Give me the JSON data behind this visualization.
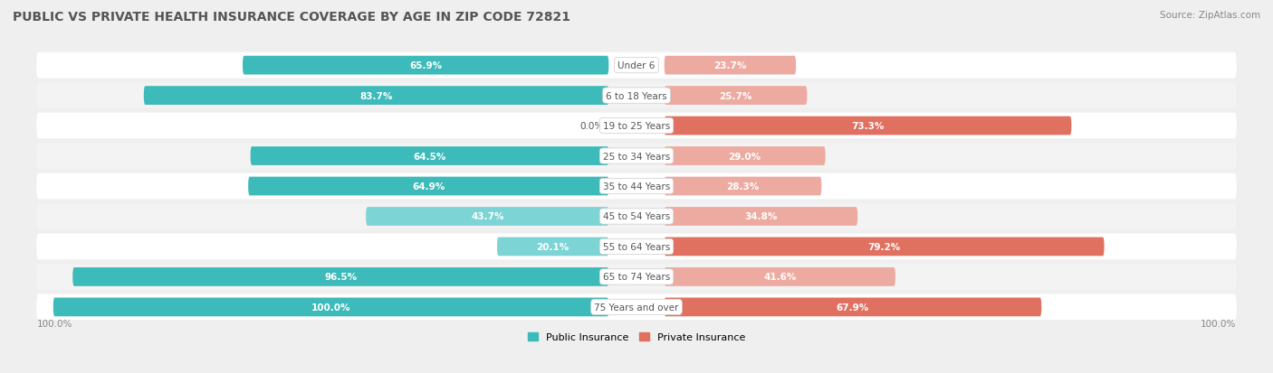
{
  "title": "PUBLIC VS PRIVATE HEALTH INSURANCE COVERAGE BY AGE IN ZIP CODE 72821",
  "source": "Source: ZipAtlas.com",
  "categories": [
    "Under 6",
    "6 to 18 Years",
    "19 to 25 Years",
    "25 to 34 Years",
    "35 to 44 Years",
    "45 to 54 Years",
    "55 to 64 Years",
    "65 to 74 Years",
    "75 Years and over"
  ],
  "public_values": [
    65.9,
    83.7,
    0.0,
    64.5,
    64.9,
    43.7,
    20.1,
    96.5,
    100.0
  ],
  "private_values": [
    23.7,
    25.7,
    73.3,
    29.0,
    28.3,
    34.8,
    79.2,
    41.6,
    67.9
  ],
  "public_color_strong": "#3DBABA",
  "public_color_light": "#7DD4D4",
  "private_color_strong": "#E07060",
  "private_color_light": "#EDAAA0",
  "public_threshold": 50.0,
  "private_threshold": 50.0,
  "bg_color": "#EFEFEF",
  "row_color_odd": "#FFFFFF",
  "row_color_even": "#F3F3F3",
  "title_color": "#555555",
  "label_dark": "#555555",
  "label_light": "#888888",
  "max_value": 100.0,
  "legend_public": "Public Insurance",
  "legend_private": "Private Insurance",
  "axis_bottom_label": "100.0%",
  "title_fontsize": 10,
  "source_fontsize": 7.5,
  "bar_label_fontsize": 7.5,
  "cat_label_fontsize": 7.5,
  "legend_fontsize": 8
}
